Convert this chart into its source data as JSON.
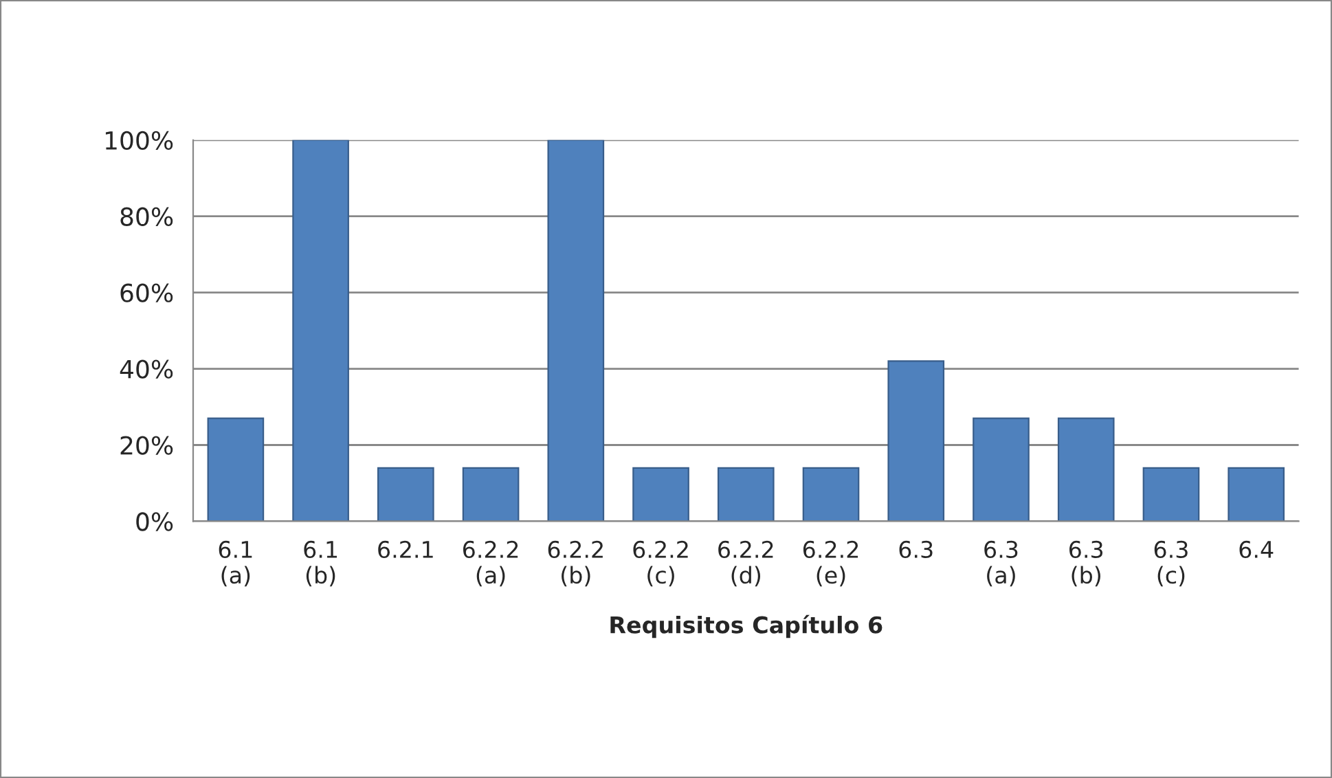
{
  "chart_data": {
    "type": "bar",
    "xlabel": "Requisitos Capítulo 6",
    "categories": [
      "6.1\n(a)",
      "6.1\n(b)",
      "6.2.1",
      "6.2.2\n(a)",
      "6.2.2\n(b)",
      "6.2.2\n(c)",
      "6.2.2\n(d)",
      "6.2.2\n(e)",
      "6.3",
      "6.3\n(a)",
      "6.3\n(b)",
      "6.3\n(c)",
      "6.4"
    ],
    "values": [
      27,
      100,
      14,
      14,
      100,
      14,
      14,
      14,
      42,
      27,
      27,
      14,
      14
    ],
    "color": "#4f81bd",
    "ylim": [
      0,
      100
    ],
    "yticks": [
      {
        "value": 0,
        "label": "0%"
      },
      {
        "value": 20,
        "label": "20%"
      },
      {
        "value": 40,
        "label": "40%"
      },
      {
        "value": 60,
        "label": "60%"
      },
      {
        "value": 80,
        "label": "80%"
      },
      {
        "value": 100,
        "label": "100%"
      }
    ],
    "grid": "y"
  }
}
